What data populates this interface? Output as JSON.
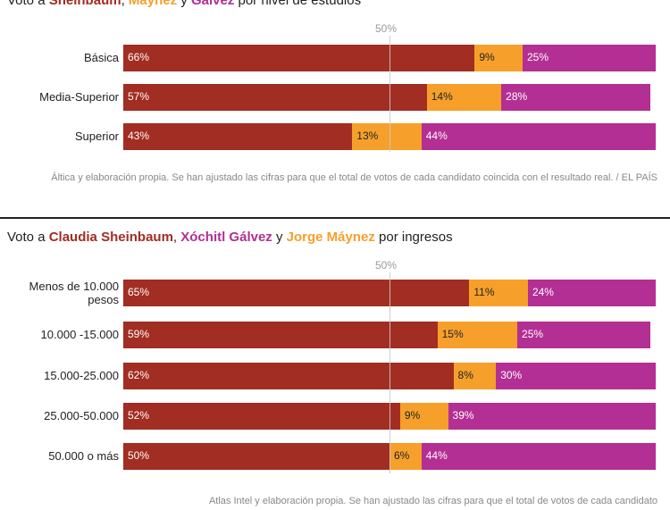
{
  "colors": {
    "sheinbaum": "#a22d22",
    "maynez": "#f6a02b",
    "galvez": "#b32f93"
  },
  "chart1": {
    "title_prefix": "Voto a ",
    "title_n1": "Sheinbaum",
    "title_sep1": ", ",
    "title_n2": "Máynez",
    "title_sep2": " y ",
    "title_n3": "Gálvez",
    "title_suffix": " por nivel de estudios",
    "midline_label": "50%",
    "source": "Áltica y elaboración propia. Se han ajustado las cifras para que el total de votos de cada candidato coincida con el resultado real. / EL PAÍS"
  },
  "chart2": {
    "title_prefix": "Voto a ",
    "title_n1": "Claudia Sheinbaum",
    "title_sep1": ", ",
    "title_n2": "Xóchitl Gálvez",
    "title_sep2": " y ",
    "title_n3": "Jorge Máynez",
    "title_suffix": " por ingresos",
    "midline_label": "50%",
    "source": "Atlas Intel y elaboración propia. Se han ajustado las cifras para que el total de votos de cada candidato"
  },
  "chart_data": [
    {
      "type": "bar",
      "stacked": true,
      "orientation": "horizontal",
      "title": "Voto a Sheinbaum, Máynez y Gálvez por nivel de estudios",
      "categories": [
        "Básica",
        "Media-Superior",
        "Superior"
      ],
      "series": [
        {
          "key": "sheinbaum",
          "values": [
            66,
            57,
            43
          ],
          "color": "#a22d22"
        },
        {
          "key": "maynez",
          "values": [
            9,
            14,
            13
          ],
          "color": "#f6a02b"
        },
        {
          "key": "galvez",
          "values": [
            25,
            28,
            44
          ],
          "color": "#b32f93"
        }
      ],
      "xlim": [
        0,
        100
      ]
    },
    {
      "type": "bar",
      "stacked": true,
      "orientation": "horizontal",
      "title": "Voto a Claudia Sheinbaum, Xóchitl Gálvez y Jorge Máynez por ingresos",
      "categories": [
        "Menos de 10.000 pesos",
        "10.000 -15.000",
        "15.000-25.000",
        "25.000-50.000",
        "50.000 o más"
      ],
      "series": [
        {
          "key": "sheinbaum",
          "values": [
            65,
            59,
            62,
            52,
            50
          ],
          "color": "#a22d22"
        },
        {
          "key": "maynez",
          "values": [
            11,
            15,
            8,
            9,
            6
          ],
          "color": "#f6a02b"
        },
        {
          "key": "galvez",
          "values": [
            24,
            25,
            30,
            39,
            44
          ],
          "color": "#b32f93"
        }
      ],
      "xlim": [
        0,
        100
      ]
    }
  ]
}
